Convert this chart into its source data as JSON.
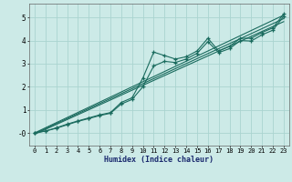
{
  "xlabel": "Humidex (Indice chaleur)",
  "bg_color": "#cceae7",
  "grid_color": "#aad4d0",
  "line_color": "#1a6b5e",
  "xlim": [
    -0.5,
    23.5
  ],
  "ylim": [
    -0.55,
    5.6
  ],
  "yticks": [
    0,
    1,
    2,
    3,
    4,
    5
  ],
  "ytick_labels": [
    "-0",
    "1",
    "2",
    "3",
    "4",
    "5"
  ],
  "xticks": [
    0,
    1,
    2,
    3,
    4,
    5,
    6,
    7,
    8,
    9,
    10,
    11,
    12,
    13,
    14,
    15,
    16,
    17,
    18,
    19,
    20,
    21,
    22,
    23
  ],
  "line1_x": [
    0,
    1,
    2,
    3,
    4,
    5,
    6,
    7,
    8,
    9,
    10,
    11,
    12,
    13,
    14,
    15,
    16,
    17,
    18,
    19,
    20,
    21,
    22,
    23
  ],
  "line1_y": [
    0.0,
    0.08,
    0.22,
    0.38,
    0.52,
    0.65,
    0.78,
    0.88,
    1.32,
    1.52,
    2.38,
    3.5,
    3.35,
    3.2,
    3.3,
    3.55,
    4.1,
    3.55,
    3.75,
    4.1,
    4.1,
    4.35,
    4.55,
    5.15
  ],
  "line2_x": [
    0,
    1,
    2,
    3,
    4,
    5,
    6,
    7,
    8,
    9,
    10,
    11,
    12,
    13,
    14,
    15,
    16,
    17,
    18,
    19,
    20,
    21,
    22,
    23
  ],
  "line2_y": [
    0.0,
    0.08,
    0.2,
    0.35,
    0.5,
    0.62,
    0.75,
    0.85,
    1.25,
    1.45,
    2.0,
    2.9,
    3.1,
    3.05,
    3.2,
    3.45,
    3.95,
    3.48,
    3.65,
    4.0,
    3.98,
    4.25,
    4.45,
    5.05
  ],
  "line3_x": [
    0,
    23
  ],
  "line3_y": [
    0.0,
    5.1
  ],
  "line4_x": [
    0,
    23
  ],
  "line4_y": [
    -0.03,
    4.95
  ],
  "line5_x": [
    0,
    23
  ],
  "line5_y": [
    -0.06,
    4.82
  ]
}
